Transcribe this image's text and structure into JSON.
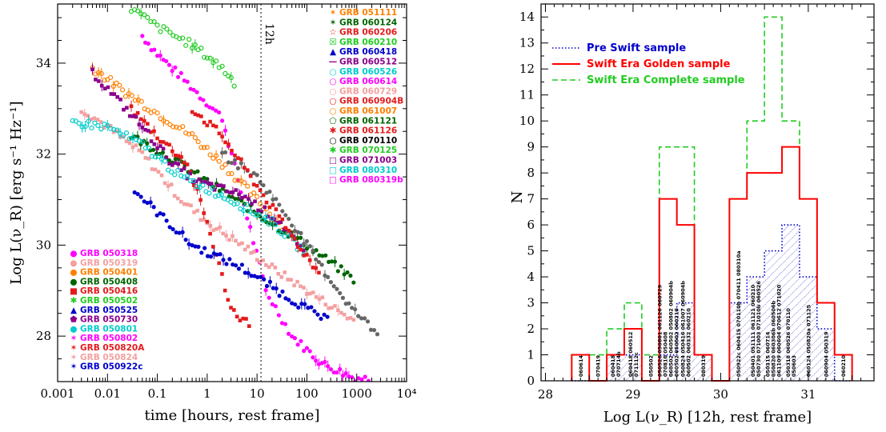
{
  "chart_data": [
    {
      "type": "scatter",
      "xlabel": "time [hours, rest frame]",
      "ylabel": "Log L(ν_R) [erg s⁻¹ Hz⁻¹]",
      "xscale": "log",
      "xlim": [
        0.001,
        10000
      ],
      "ylim": [
        27,
        35.3
      ],
      "x_ticks": [
        0.001,
        0.01,
        0.1,
        1,
        10,
        100,
        1000,
        10000
      ],
      "x_tick_labels": [
        "0.001",
        "0.01",
        "0.1",
        "1",
        "10",
        "100",
        "1000",
        "10⁴"
      ],
      "y_ticks": [
        28,
        30,
        32,
        34
      ],
      "y_tick_labels": [
        "28",
        "30",
        "32",
        "34"
      ],
      "vline": {
        "x": 12,
        "label": "12h"
      },
      "legend_right": [
        {
          "name": "GRB 051111",
          "color": "#ff7f00",
          "marker": "✶"
        },
        {
          "name": "GRB 060124",
          "color": "#006400",
          "marker": "✶"
        },
        {
          "name": "GRB 060206",
          "color": "#e41a1c",
          "marker": "☆"
        },
        {
          "name": "GRB 060210",
          "color": "#22cc22",
          "marker": "☒"
        },
        {
          "name": "GRB 060418",
          "color": "#0000cc",
          "marker": "▲"
        },
        {
          "name": "GRB 060512",
          "color": "#8b008b",
          "marker": "—"
        },
        {
          "name": "GRB 060526",
          "color": "#00cccc",
          "marker": "○"
        },
        {
          "name": "GRB 060614",
          "color": "#ff00ff",
          "marker": "○"
        },
        {
          "name": "GRB 060729",
          "color": "#f4a0a0",
          "marker": "○"
        },
        {
          "name": "GRB 060904B",
          "color": "#e41a1c",
          "marker": "○"
        },
        {
          "name": "GRB 061007",
          "color": "#ff7f00",
          "marker": "○"
        },
        {
          "name": "GRB 061121",
          "color": "#006400",
          "marker": "⬠"
        },
        {
          "name": "GRB 061126",
          "color": "#e41a1c",
          "marker": "✱"
        },
        {
          "name": "GRB 070110",
          "color": "#000000",
          "marker": "○"
        },
        {
          "name": "GRB 070125",
          "color": "#22cc22",
          "marker": "✱"
        },
        {
          "name": "GRB 071003",
          "color": "#8b008b",
          "marker": "□"
        },
        {
          "name": "GRB 080310",
          "color": "#00cccc",
          "marker": "□"
        },
        {
          "name": "GRB 080319b",
          "color": "#ff00ff",
          "marker": "□"
        }
      ],
      "legend_left": [
        {
          "name": "GRB 050318",
          "color": "#ff00ff",
          "marker": "●"
        },
        {
          "name": "GRB 050319",
          "color": "#f4a0a0",
          "marker": "●"
        },
        {
          "name": "GRB 050401",
          "color": "#ff7f00",
          "marker": "●"
        },
        {
          "name": "GRB 050408",
          "color": "#006400",
          "marker": "●"
        },
        {
          "name": "GRB 050416",
          "color": "#e41a1c",
          "marker": "■"
        },
        {
          "name": "GRB 050502",
          "color": "#22cc22",
          "marker": "✱"
        },
        {
          "name": "GRB 050525",
          "color": "#0000cc",
          "marker": "▲"
        },
        {
          "name": "GRB 050730",
          "color": "#8b008b",
          "marker": "⬟"
        },
        {
          "name": "GRB 050801",
          "color": "#00cccc",
          "marker": "●"
        },
        {
          "name": "GRB 050802",
          "color": "#ff00ff",
          "marker": "✶"
        },
        {
          "name": "GRB 050820A",
          "color": "#e41a1c",
          "marker": "✶"
        },
        {
          "name": "GRB 050824",
          "color": "#f4a0a0",
          "marker": "✶"
        },
        {
          "name": "GRB 050922c",
          "color": "#0000cc",
          "marker": "✶"
        }
      ],
      "series": [
        {
          "color": "#ff00ff",
          "points": [
            [
              0.05,
              34.6
            ],
            [
              0.1,
              34.2
            ],
            [
              0.3,
              33.7
            ],
            [
              2,
              32.8
            ],
            [
              15,
              29
            ],
            [
              50,
              28
            ],
            [
              200,
              27.4
            ],
            [
              800,
              27.1
            ],
            [
              2000,
              27.05
            ]
          ]
        },
        {
          "color": "#f4a0a0",
          "points": [
            [
              0.003,
              33
            ],
            [
              0.01,
              32.6
            ],
            [
              0.05,
              32
            ],
            [
              0.3,
              31
            ],
            [
              1,
              30.5
            ],
            [
              5,
              30
            ],
            [
              20,
              29.5
            ],
            [
              100,
              29
            ],
            [
              1000,
              28.3
            ]
          ]
        },
        {
          "color": "#ff7f00",
          "points": [
            [
              0.005,
              33.9
            ],
            [
              0.02,
              33.4
            ],
            [
              0.1,
              32.9
            ],
            [
              0.5,
              32.4
            ],
            [
              2,
              31.8
            ],
            [
              10,
              31
            ],
            [
              50,
              30.2
            ]
          ]
        },
        {
          "color": "#006400",
          "points": [
            [
              0.03,
              32.4
            ],
            [
              0.2,
              31.9
            ],
            [
              1,
              31.4
            ],
            [
              10,
              30.7
            ],
            [
              100,
              30
            ],
            [
              1000,
              29.2
            ]
          ]
        },
        {
          "color": "#e41a1c",
          "points": [
            [
              0.03,
              33
            ],
            [
              0.1,
              32.4
            ],
            [
              0.4,
              31.8
            ],
            [
              1,
              30.5
            ],
            [
              3,
              28.6
            ],
            [
              8,
              28.2
            ]
          ]
        },
        {
          "color": "#22cc22",
          "points": [
            [
              0.03,
              35.2
            ],
            [
              0.1,
              34.8
            ],
            [
              0.5,
              34.4
            ],
            [
              2,
              33.9
            ],
            [
              4,
              33.5
            ]
          ]
        },
        {
          "color": "#0000cc",
          "points": [
            [
              0.035,
              31.2
            ],
            [
              0.5,
              30
            ],
            [
              5,
              29.5
            ],
            [
              50,
              28.8
            ],
            [
              300,
              28.3
            ]
          ]
        },
        {
          "color": "#8b008b",
          "points": [
            [
              0.005,
              33.8
            ],
            [
              0.05,
              32.6
            ],
            [
              0.2,
              31.8
            ],
            [
              0.6,
              31.4
            ],
            [
              5,
              31.1
            ],
            [
              30,
              30.5
            ],
            [
              100,
              29.7
            ]
          ]
        },
        {
          "color": "#00cccc",
          "points": [
            [
              0.002,
              32.7
            ],
            [
              0.01,
              32.6
            ],
            [
              0.05,
              32.2
            ],
            [
              0.3,
              31.5
            ],
            [
              3,
              31
            ],
            [
              20,
              30.5
            ],
            [
              100,
              29.8
            ]
          ]
        },
        {
          "color": "#666666",
          "points": [
            [
              2,
              32
            ],
            [
              10,
              31.5
            ],
            [
              50,
              30.5
            ],
            [
              200,
              29.5
            ],
            [
              800,
              28.6
            ],
            [
              3000,
              28
            ]
          ]
        },
        {
          "color": "#e41a1c",
          "points": [
            [
              0.5,
              33
            ],
            [
              2,
              32.4
            ],
            [
              10,
              31.3
            ],
            [
              50,
              30.2
            ],
            [
              200,
              29.3
            ]
          ]
        }
      ]
    },
    {
      "type": "bar",
      "histogram": true,
      "xlabel": "Log L(ν_R) [12h, rest frame]",
      "ylabel": "N",
      "xlim": [
        27.95,
        31.75
      ],
      "ylim": [
        0,
        14.5
      ],
      "x_ticks": [
        28,
        29,
        30,
        31
      ],
      "x_tick_labels": [
        "28",
        "29",
        "30",
        "31"
      ],
      "y_ticks": [
        0,
        1,
        2,
        3,
        4,
        5,
        6,
        7,
        8,
        9,
        10,
        11,
        12,
        13,
        14
      ],
      "y_tick_labels": [
        "0",
        "1",
        "2",
        "3",
        "4",
        "5",
        "6",
        "7",
        "8",
        "9",
        "10",
        "11",
        "12",
        "13",
        "14"
      ],
      "bin_width": 0.2,
      "bin_starts": [
        28.3,
        28.5,
        28.7,
        28.9,
        29.1,
        29.3,
        29.5,
        29.7,
        29.9,
        30.1,
        30.3,
        30.5,
        30.7,
        30.9,
        31.1,
        31.3
      ],
      "series": [
        {
          "name": "Pre Swift sample",
          "color": "#0000cc",
          "style": "dotted",
          "values": [
            0,
            0,
            1,
            1,
            0,
            1,
            3,
            1,
            0,
            3,
            4,
            5,
            6,
            4,
            2,
            0
          ]
        },
        {
          "name": "Swift Era Golden sample",
          "color": "#ff0000",
          "style": "solid",
          "values": [
            1,
            0,
            1,
            2,
            0,
            7,
            6,
            1,
            0,
            7,
            8,
            8,
            9,
            7,
            3,
            1
          ]
        },
        {
          "name": "Swift Era Complete sample",
          "color": "#22cc22",
          "style": "dashed",
          "values": [
            1,
            1,
            2,
            3,
            1,
            9,
            9,
            1,
            0,
            7,
            10,
            14,
            10,
            7,
            3,
            1
          ]
        }
      ],
      "bin_labels": [
        {
          "bin": 28.3,
          "names": [
            "060614"
          ]
        },
        {
          "bin": 28.5,
          "names": [
            "070419"
          ]
        },
        {
          "bin": 28.7,
          "names": [
            "060418",
            "070714b"
          ]
        },
        {
          "bin": 28.9,
          "names": [
            "060418 060512",
            "071112c"
          ]
        },
        {
          "bin": 29.1,
          "names": [
            "050502"
          ]
        },
        {
          "bin": 29.3,
          "names": [
            "050526 050801 061126 060729",
            "070810 050408",
            "060502 060502 050802 060904b",
            "060502 050502 060210"
          ]
        },
        {
          "bin": 29.5,
          "names": [
            "050824 050416 061007 060904b",
            "060502 060332 060210"
          ]
        },
        {
          "bin": 29.7,
          "names": [
            "080319"
          ]
        },
        {
          "bin": 30.1,
          "names": [
            "050922c 060415 070110b 070411 080310a"
          ]
        },
        {
          "bin": 30.3,
          "names": [
            "050401 051111 061121 060210",
            "050730 071003 071010b 060526"
          ]
        },
        {
          "bin": 30.5,
          "names": [
            "050315 060714",
            "050820 060306b 060506b",
            "061109 060604 070612 071020"
          ]
        },
        {
          "bin": 30.7,
          "names": [
            "050318 060526 070110",
            "050603"
          ]
        },
        {
          "bin": 30.9,
          "names": [
            "060124 050820a 071125"
          ]
        },
        {
          "bin": 31.1,
          "names": [
            "060904 050319"
          ]
        },
        {
          "bin": 31.3,
          "names": [
            "060210"
          ]
        }
      ]
    }
  ]
}
